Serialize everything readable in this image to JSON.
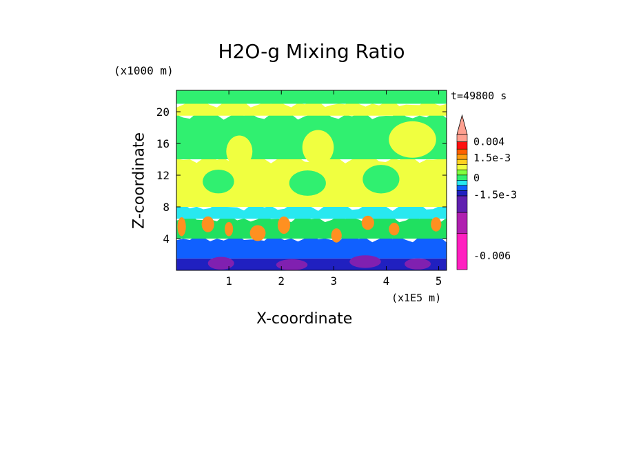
{
  "chart_data": {
    "type": "heatmap",
    "title": "H2O-g Mixing Ratio",
    "xlabel": "X-coordinate",
    "ylabel": "Z-coordinate",
    "x_units": "(x1E5 m)",
    "y_units": "(x1000 m)",
    "time_label": "t=49800 s",
    "xlim": [
      0,
      5.15
    ],
    "ylim": [
      0,
      22.7
    ],
    "x_ticks": [
      1,
      2,
      3,
      4,
      5
    ],
    "y_ticks": [
      4,
      8,
      12,
      16,
      20
    ],
    "layers": [
      {
        "from": 0.0,
        "to": 1.5,
        "color": "#2020c0"
      },
      {
        "from": 1.5,
        "to": 4.0,
        "color": "#1060ff"
      },
      {
        "from": 4.0,
        "to": 6.5,
        "color": "#20e060"
      },
      {
        "from": 6.5,
        "to": 8.0,
        "color": "#28e8f0"
      },
      {
        "from": 8.0,
        "to": 14.0,
        "color": "#f0ff40"
      },
      {
        "from": 14.0,
        "to": 19.5,
        "color": "#30f070"
      },
      {
        "from": 19.5,
        "to": 21.0,
        "color": "#f0ff40"
      },
      {
        "from": 21.0,
        "to": 22.7,
        "color": "#30f070"
      }
    ],
    "patches": [
      {
        "x": 0.1,
        "z": 5.5,
        "rx": 0.08,
        "rz": 1.2,
        "color": "#ff9020"
      },
      {
        "x": 0.6,
        "z": 5.8,
        "rx": 0.12,
        "rz": 1.0,
        "color": "#ff9020"
      },
      {
        "x": 1.0,
        "z": 5.2,
        "rx": 0.08,
        "rz": 0.9,
        "color": "#ff9020"
      },
      {
        "x": 1.55,
        "z": 4.7,
        "rx": 0.15,
        "rz": 1.0,
        "color": "#ff9020"
      },
      {
        "x": 2.05,
        "z": 5.7,
        "rx": 0.12,
        "rz": 1.1,
        "color": "#ff9020"
      },
      {
        "x": 3.05,
        "z": 4.4,
        "rx": 0.1,
        "rz": 0.9,
        "color": "#ff9020"
      },
      {
        "x": 3.65,
        "z": 6.0,
        "rx": 0.12,
        "rz": 0.9,
        "color": "#ff9020"
      },
      {
        "x": 4.15,
        "z": 5.2,
        "rx": 0.1,
        "rz": 0.8,
        "color": "#ff9020"
      },
      {
        "x": 4.95,
        "z": 5.8,
        "rx": 0.1,
        "rz": 0.9,
        "color": "#ff9020"
      },
      {
        "x": 0.85,
        "z": 0.9,
        "rx": 0.25,
        "rz": 0.8,
        "color": "#8020b0"
      },
      {
        "x": 2.2,
        "z": 0.7,
        "rx": 0.3,
        "rz": 0.7,
        "color": "#8020b0"
      },
      {
        "x": 3.6,
        "z": 1.1,
        "rx": 0.3,
        "rz": 0.8,
        "color": "#8020b0"
      },
      {
        "x": 4.6,
        "z": 0.8,
        "rx": 0.25,
        "rz": 0.7,
        "color": "#8020b0"
      },
      {
        "x": 1.2,
        "z": 15.0,
        "rx": 0.25,
        "rz": 2.0,
        "color": "#f0ff40"
      },
      {
        "x": 2.7,
        "z": 15.5,
        "rx": 0.3,
        "rz": 2.2,
        "color": "#f0ff40"
      },
      {
        "x": 4.5,
        "z": 16.5,
        "rx": 0.45,
        "rz": 2.3,
        "color": "#f0ff40"
      },
      {
        "x": 2.5,
        "z": 11.0,
        "rx": 0.35,
        "rz": 1.6,
        "color": "#30f070"
      },
      {
        "x": 3.9,
        "z": 11.5,
        "rx": 0.35,
        "rz": 1.8,
        "color": "#30f070"
      },
      {
        "x": 0.8,
        "z": 11.2,
        "rx": 0.3,
        "rz": 1.5,
        "color": "#30f070"
      }
    ],
    "colorbar": {
      "colors": [
        "#ff20c0",
        "#b020b0",
        "#6020b0",
        "#2020c0",
        "#1060ff",
        "#28e8f0",
        "#30f070",
        "#80ff40",
        "#f0ff40",
        "#ffd020",
        "#ffa010",
        "#ff6000",
        "#ff1010",
        "#ffa090"
      ],
      "weights": [
        3.5,
        2.0,
        1.6,
        0.5,
        0.5,
        0.5,
        0.5,
        0.5,
        0.5,
        0.5,
        0.5,
        0.5,
        0.7,
        0.7
      ],
      "labels": [
        {
          "text": "0.004",
          "value": 0.004
        },
        {
          "text": "1.5e-3",
          "value": 0.0015
        },
        {
          "text": "0",
          "value": 0
        },
        {
          "text": "-1.5e-3",
          "value": -0.0015
        },
        {
          "text": "-0.006",
          "value": -0.006
        }
      ]
    }
  }
}
